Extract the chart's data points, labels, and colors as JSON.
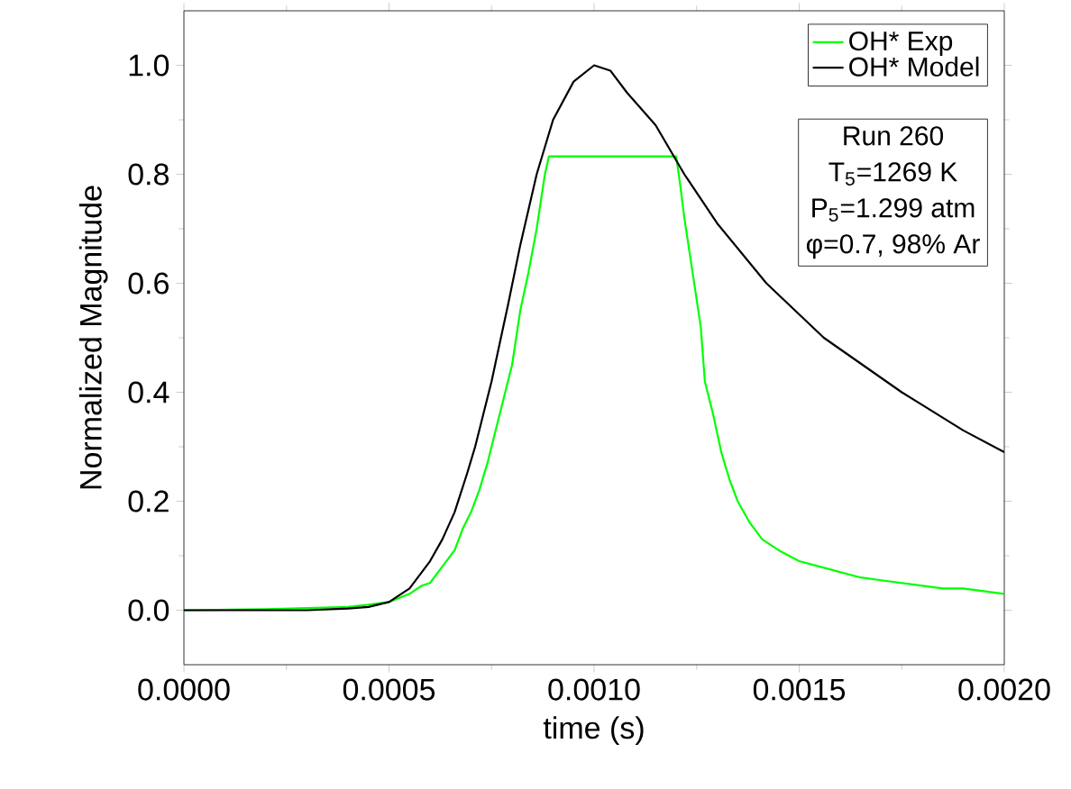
{
  "chart_data": {
    "type": "line",
    "xlabel": "time (s)",
    "ylabel": "Normalized Magnitude",
    "xlim": [
      0,
      0.002
    ],
    "ylim": [
      -0.1,
      1.1
    ],
    "xticks": [
      {
        "value": 0,
        "label": "0.0000"
      },
      {
        "value": 0.0005,
        "label": "0.0005"
      },
      {
        "value": 0.001,
        "label": "0.0010"
      },
      {
        "value": 0.0015,
        "label": "0.0015"
      },
      {
        "value": 0.002,
        "label": "0.0020"
      }
    ],
    "yticks": [
      {
        "value": 0,
        "label": "0.0"
      },
      {
        "value": 0.2,
        "label": "0.2"
      },
      {
        "value": 0.4,
        "label": "0.4"
      },
      {
        "value": 0.6,
        "label": "0.6"
      },
      {
        "value": 0.8,
        "label": "0.8"
      },
      {
        "value": 1,
        "label": "1.0"
      }
    ],
    "legend": "top right",
    "grid": false,
    "marker": "none",
    "line_style": "solid",
    "annotations": [
      "Run 260",
      "T$_{5}$=1269 K",
      "P$_{5}$=1.299 atm",
      "φ=0.7, 98% Ar"
    ],
    "series": [
      {
        "name": "OH* Exp",
        "color": "#00ff00",
        "x": [
          0,
          0.0002,
          0.0003,
          0.0004,
          0.00045,
          0.0005,
          0.00055,
          0.00058,
          0.0006,
          0.00062,
          0.00064,
          0.00066,
          0.00068,
          0.0007,
          0.00072,
          0.00074,
          0.00076,
          0.00078,
          0.0008,
          0.00082,
          0.00084,
          0.00086,
          0.00088,
          0.00089,
          0.0012,
          0.00121,
          0.00122,
          0.00124,
          0.00126,
          0.00127,
          0.00129,
          0.00131,
          0.00133,
          0.00135,
          0.00138,
          0.00141,
          0.00145,
          0.0015,
          0.00155,
          0.0016,
          0.00165,
          0.0017,
          0.00175,
          0.0018,
          0.00185,
          0.0019,
          0.00195,
          0.002
        ],
        "values": [
          0,
          0.002,
          0.004,
          0.006,
          0.01,
          0.015,
          0.03,
          0.045,
          0.05,
          0.07,
          0.09,
          0.11,
          0.15,
          0.18,
          0.22,
          0.27,
          0.33,
          0.39,
          0.45,
          0.55,
          0.62,
          0.7,
          0.8,
          0.833,
          0.833,
          0.78,
          0.72,
          0.62,
          0.52,
          0.42,
          0.36,
          0.29,
          0.24,
          0.2,
          0.16,
          0.13,
          0.11,
          0.09,
          0.08,
          0.07,
          0.06,
          0.055,
          0.05,
          0.045,
          0.04,
          0.04,
          0.035,
          0.03
        ]
      },
      {
        "name": "OH* Model",
        "color": "#000000",
        "x": [
          0,
          0.0003,
          0.0004,
          0.00045,
          0.0005,
          0.00055,
          0.0006,
          0.00063,
          0.00066,
          0.00069,
          0.00071,
          0.00073,
          0.00075,
          0.00077,
          0.00079,
          0.00082,
          0.00086,
          0.0009,
          0.00095,
          0.001,
          0.00104,
          0.00108,
          0.00115,
          0.00122,
          0.0013,
          0.00142,
          0.00156,
          0.00175,
          0.0019,
          0.002
        ],
        "values": [
          0,
          0,
          0.003,
          0.006,
          0.015,
          0.04,
          0.09,
          0.13,
          0.18,
          0.25,
          0.3,
          0.36,
          0.42,
          0.49,
          0.56,
          0.67,
          0.8,
          0.9,
          0.97,
          1.0,
          0.99,
          0.95,
          0.89,
          0.8,
          0.71,
          0.6,
          0.5,
          0.4,
          0.33,
          0.29
        ]
      }
    ]
  }
}
